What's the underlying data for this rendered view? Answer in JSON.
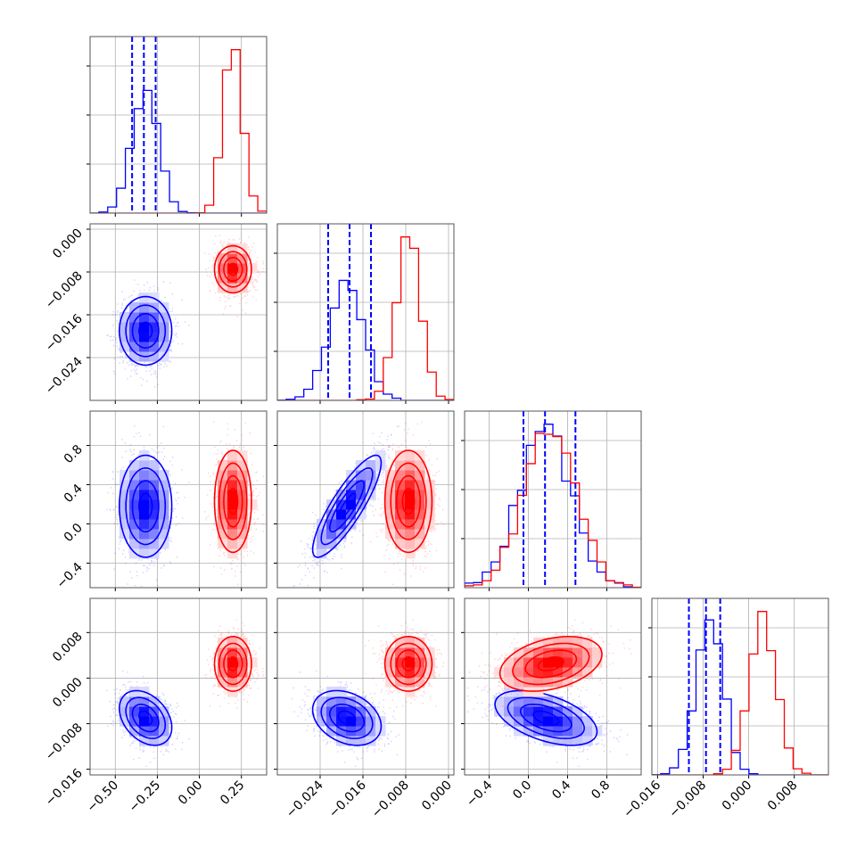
{
  "chart_data": {
    "type": "corner",
    "title": "",
    "grid": true,
    "parameters": [
      {
        "label": "",
        "lim": [
          -0.65,
          0.4
        ],
        "ticks": [
          -0.5,
          -0.25,
          0.0,
          0.25
        ],
        "tick_labels": [
          "−0.50",
          "−0.25",
          "0.00",
          "0.25"
        ]
      },
      {
        "label": "",
        "lim": [
          -0.032,
          0.001
        ],
        "ticks": [
          -0.024,
          -0.016,
          -0.008,
          0.0
        ],
        "tick_labels": [
          "−0.024",
          "−0.016",
          "−0.008",
          "0.000"
        ]
      },
      {
        "label": "",
        "lim": [
          -0.65,
          1.15
        ],
        "ticks": [
          -0.4,
          0.0,
          0.4,
          0.8
        ],
        "tick_labels": [
          "−0.4",
          "0.0",
          "0.4",
          "0.8"
        ]
      },
      {
        "label": "",
        "lim": [
          -0.017,
          0.014
        ],
        "ticks": [
          -0.016,
          -0.008,
          0.0,
          0.008
        ],
        "tick_labels": [
          "−0.016",
          "−0.008",
          "0.000",
          "0.008"
        ]
      }
    ],
    "series": [
      {
        "color": "#0000ff",
        "mean": [
          -0.32,
          -0.019,
          0.18,
          -0.007
        ],
        "std": [
          0.078,
          0.0032,
          0.26,
          0.0024
        ],
        "correlations": [
          [
            0,
            1,
            0.0
          ],
          [
            0,
            2,
            0.0
          ],
          [
            0,
            3,
            -0.35
          ],
          [
            1,
            2,
            0.85
          ],
          [
            1,
            3,
            -0.3
          ],
          [
            2,
            3,
            -0.5
          ]
        ],
        "quantiles": [
          [
            -0.4,
            -0.33,
            -0.26
          ],
          [
            -0.0225,
            -0.0185,
            -0.0145
          ],
          [
            -0.05,
            0.17,
            0.48
          ],
          [
            -0.0105,
            -0.0075,
            -0.005
          ]
        ]
      },
      {
        "color": "#ff0000",
        "mean": [
          0.2,
          -0.0075,
          0.23,
          0.0025
        ],
        "std": [
          0.055,
          0.0022,
          0.26,
          0.0024
        ],
        "correlations": [
          [
            0,
            1,
            0.0
          ],
          [
            0,
            2,
            0.0
          ],
          [
            0,
            3,
            0.0
          ],
          [
            1,
            2,
            0.0
          ],
          [
            1,
            3,
            0.0
          ],
          [
            2,
            3,
            0.35
          ]
        ]
      }
    ]
  }
}
